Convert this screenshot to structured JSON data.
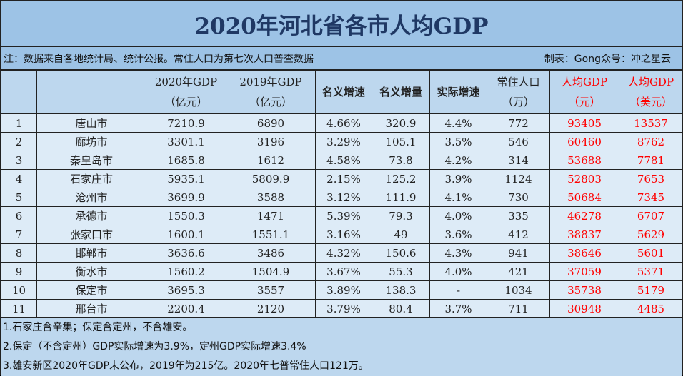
{
  "title": "2020年河北省各市人均GDP",
  "note_left": "注：数据来自各地统计局、统计公报。常住人口为第七次人口普查数据",
  "note_right": "制表：Gong众号：冲之星云",
  "headers": [
    {
      "l1": "",
      "l2": ""
    },
    {
      "l1": "",
      "l2": ""
    },
    {
      "l1": "2020年GDP",
      "l2": "（亿元）"
    },
    {
      "l1": "2019年GDP",
      "l2": "（亿元）"
    },
    {
      "l1": "名义增速",
      "l2": ""
    },
    {
      "l1": "名义增量",
      "l2": ""
    },
    {
      "l1": "实际增速",
      "l2": ""
    },
    {
      "l1": "常住人口",
      "l2": "（万）"
    },
    {
      "l1": "人均GDP",
      "l2": "（元）"
    },
    {
      "l1": "人均GDP",
      "l2": "（美元）"
    }
  ],
  "rows": [
    [
      "1",
      "唐山市",
      "7210.9",
      "6890",
      "4.66%",
      "320.9",
      "4.4%",
      "772",
      "93405",
      "13537"
    ],
    [
      "2",
      "廊坊市",
      "3301.1",
      "3196",
      "3.29%",
      "105.1",
      "3.5%",
      "546",
      "60460",
      "8762"
    ],
    [
      "3",
      "秦皇岛市",
      "1685.8",
      "1612",
      "4.58%",
      "73.8",
      "4.2%",
      "314",
      "53688",
      "7781"
    ],
    [
      "4",
      "石家庄市",
      "5935.1",
      "5809.9",
      "2.15%",
      "125.2",
      "3.9%",
      "1124",
      "52803",
      "7653"
    ],
    [
      "5",
      "沧州市",
      "3699.9",
      "3588",
      "3.12%",
      "111.9",
      "4.1%",
      "730",
      "50684",
      "7345"
    ],
    [
      "6",
      "承德市",
      "1550.3",
      "1471",
      "5.39%",
      "79.3",
      "4.0%",
      "335",
      "46278",
      "6707"
    ],
    [
      "7",
      "张家口市",
      "1600.1",
      "1551.1",
      "3.16%",
      "49",
      "3.6%",
      "412",
      "38837",
      "5629"
    ],
    [
      "8",
      "邯郸市",
      "3636.6",
      "3486",
      "4.32%",
      "150.6",
      "4.3%",
      "941",
      "38646",
      "5601"
    ],
    [
      "9",
      "衡水市",
      "1560.2",
      "1504.9",
      "3.67%",
      "55.3",
      "4.0%",
      "421",
      "37059",
      "5371"
    ],
    [
      "10",
      "保定市",
      "3695.3",
      "3557",
      "3.89%",
      "138.3",
      "-",
      "1034",
      "35738",
      "5179"
    ],
    [
      "11",
      "邢台市",
      "2200.4",
      "2120",
      "3.79%",
      "80.4",
      "3.7%",
      "711",
      "30948",
      "4485"
    ]
  ],
  "footnotes": [
    "1.石家庄含辛集；保定含定州，不含雄安。",
    "2.保定（不含定州）GDP实际增速为3.9%，定州GDP实际增速3.4%",
    "3.雄安新区2020年GDP未公布，2019年为215亿。2020年七普常住人口121万。"
  ],
  "colors": {
    "title_band": "#9dc3e6",
    "header": "#bdd7ee",
    "row": "#ddebf7",
    "title_text": "#1f3864",
    "highlight": "#ff0000"
  }
}
